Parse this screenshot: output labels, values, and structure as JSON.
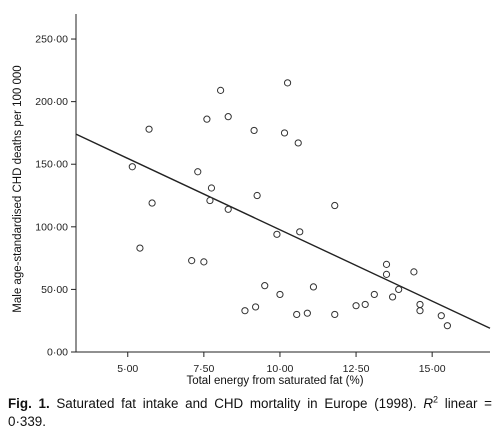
{
  "chart_data": {
    "type": "scatter",
    "xlabel": "Total energy from saturated fat (%)",
    "ylabel": "Male age-standardised CHD deaths per 100 000",
    "xlim": [
      3.3,
      16.9
    ],
    "ylim": [
      0,
      270
    ],
    "xticks": [
      5,
      7.5,
      10,
      12.5,
      15
    ],
    "xtick_labels": [
      "5·00",
      "7·50",
      "10·00",
      "12·50",
      "15·00"
    ],
    "yticks": [
      0,
      50,
      100,
      150,
      200,
      250
    ],
    "ytick_labels": [
      "0·00",
      "50·00",
      "100·00",
      "150·00",
      "200·00",
      "250·00"
    ],
    "grid": false,
    "marker": "open-circle",
    "points": [
      {
        "x": 5.15,
        "y": 148
      },
      {
        "x": 5.4,
        "y": 83
      },
      {
        "x": 5.7,
        "y": 178
      },
      {
        "x": 5.8,
        "y": 119
      },
      {
        "x": 7.1,
        "y": 73
      },
      {
        "x": 7.3,
        "y": 144
      },
      {
        "x": 7.5,
        "y": 72
      },
      {
        "x": 7.6,
        "y": 186
      },
      {
        "x": 7.7,
        "y": 121
      },
      {
        "x": 7.75,
        "y": 131
      },
      {
        "x": 8.05,
        "y": 209
      },
      {
        "x": 8.3,
        "y": 188
      },
      {
        "x": 8.3,
        "y": 114
      },
      {
        "x": 8.85,
        "y": 33
      },
      {
        "x": 9.15,
        "y": 177
      },
      {
        "x": 9.2,
        "y": 36
      },
      {
        "x": 9.25,
        "y": 125
      },
      {
        "x": 9.5,
        "y": 53
      },
      {
        "x": 9.9,
        "y": 94
      },
      {
        "x": 10.0,
        "y": 46
      },
      {
        "x": 10.15,
        "y": 175
      },
      {
        "x": 10.25,
        "y": 215
      },
      {
        "x": 10.55,
        "y": 30
      },
      {
        "x": 10.6,
        "y": 167
      },
      {
        "x": 10.65,
        "y": 96
      },
      {
        "x": 10.9,
        "y": 31
      },
      {
        "x": 11.1,
        "y": 52
      },
      {
        "x": 11.8,
        "y": 30
      },
      {
        "x": 11.8,
        "y": 117
      },
      {
        "x": 12.5,
        "y": 37
      },
      {
        "x": 12.8,
        "y": 38
      },
      {
        "x": 13.1,
        "y": 46
      },
      {
        "x": 13.5,
        "y": 70
      },
      {
        "x": 13.5,
        "y": 62
      },
      {
        "x": 13.7,
        "y": 44
      },
      {
        "x": 13.9,
        "y": 50
      },
      {
        "x": 14.4,
        "y": 64
      },
      {
        "x": 14.6,
        "y": 38
      },
      {
        "x": 14.6,
        "y": 33
      },
      {
        "x": 15.3,
        "y": 29
      },
      {
        "x": 15.5,
        "y": 21
      }
    ],
    "regression_line": {
      "x": [
        3.3,
        16.9
      ],
      "y": [
        174,
        19
      ]
    }
  },
  "caption": {
    "label": "Fig. 1.",
    "text_main": " Saturated fat intake and CHD mortality in Europe (1998). ",
    "r_symbol": "R",
    "r_exponent": "2",
    "text_end": " linear = 0·339."
  }
}
